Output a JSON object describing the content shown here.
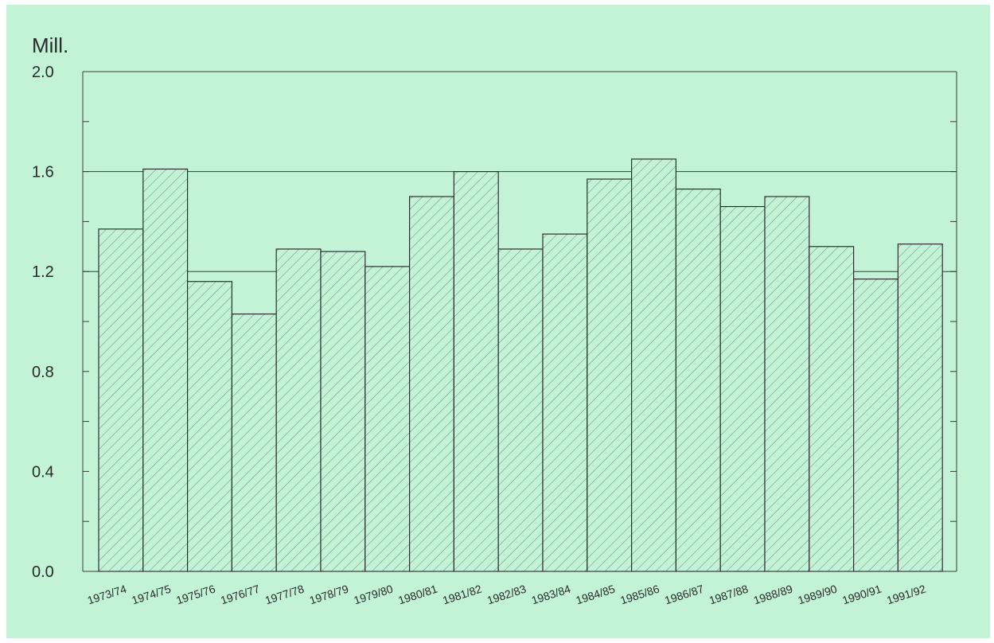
{
  "chart_data": {
    "type": "bar",
    "unit_label": "Mill.",
    "categories": [
      "1973/74",
      "1974/75",
      "1975/76",
      "1976/77",
      "1977/78",
      "1978/79",
      "1979/80",
      "1980/81",
      "1981/82",
      "1982/83",
      "1983/84",
      "1984/85",
      "1985/86",
      "1986/87",
      "1987/88",
      "1988/89",
      "1989/90",
      "1990/91",
      "1991/92"
    ],
    "values": [
      1.37,
      1.61,
      1.16,
      1.03,
      1.29,
      1.28,
      1.22,
      1.5,
      1.6,
      1.29,
      1.35,
      1.57,
      1.65,
      1.53,
      1.46,
      1.5,
      1.3,
      1.17,
      1.31
    ],
    "ylim": [
      0,
      2.0
    ],
    "yticks": [
      "0.0",
      "0.4",
      "0.8",
      "1.2",
      "1.6",
      "2.0"
    ],
    "ytick_values": [
      0,
      0.4,
      0.8,
      1.2,
      1.6,
      2.0
    ],
    "gridlines": [
      1.2,
      1.6
    ],
    "colors": {
      "background": "#c2f3d6",
      "bar_fill": "#c2f3d6",
      "hatch": "#6f8a78",
      "line": "#3a3a3a"
    }
  }
}
